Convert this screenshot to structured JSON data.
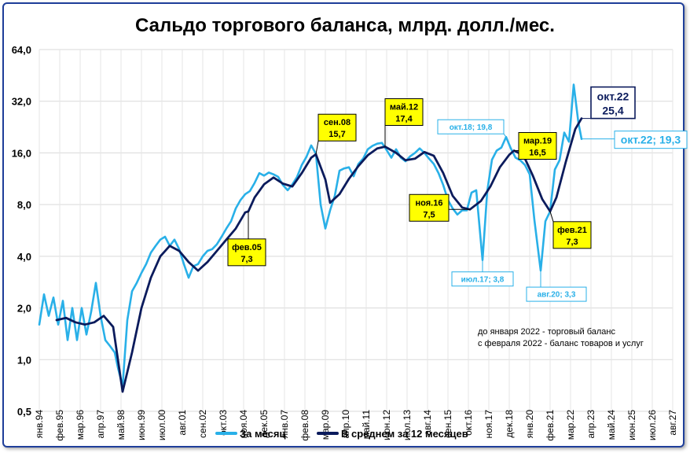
{
  "chart_data": {
    "type": "line",
    "title": "Сальдо торгового баланса, млрд. долл./мес.",
    "yscale": "log2",
    "ylim": [
      0.5,
      64.0
    ],
    "yticks": [
      "64,0",
      "32,0",
      "16,0",
      "8,0",
      "4,0",
      "2,0",
      "1,0",
      "0,5"
    ],
    "ytick_values": [
      64,
      32,
      16,
      8,
      4,
      2,
      1,
      0.5
    ],
    "xlim": [
      "1994-01",
      "2027-08"
    ],
    "xticks": [
      {
        "label": "янв.94",
        "date": "1994-01"
      },
      {
        "label": "фев.95",
        "date": "1995-02"
      },
      {
        "label": "мар.96",
        "date": "1996-03"
      },
      {
        "label": "апр.97",
        "date": "1997-04"
      },
      {
        "label": "май.98",
        "date": "1998-05"
      },
      {
        "label": "июн.99",
        "date": "1999-06"
      },
      {
        "label": "июл.00",
        "date": "2000-07"
      },
      {
        "label": "авг.01",
        "date": "2001-08"
      },
      {
        "label": "сен.02",
        "date": "2002-09"
      },
      {
        "label": "окт.03",
        "date": "2003-10"
      },
      {
        "label": "ноя.04",
        "date": "2004-11"
      },
      {
        "label": "дек.05",
        "date": "2005-12"
      },
      {
        "label": "янв.07",
        "date": "2007-01"
      },
      {
        "label": "фев.08",
        "date": "2008-02"
      },
      {
        "label": "мар.09",
        "date": "2009-03"
      },
      {
        "label": "апр.10",
        "date": "2010-04"
      },
      {
        "label": "май.11",
        "date": "2011-05"
      },
      {
        "label": "июн.12",
        "date": "2012-06"
      },
      {
        "label": "июл.13",
        "date": "2013-07"
      },
      {
        "label": "авг.14",
        "date": "2014-08"
      },
      {
        "label": "сен.15",
        "date": "2015-09"
      },
      {
        "label": "окт.16",
        "date": "2016-10"
      },
      {
        "label": "ноя.17",
        "date": "2017-11"
      },
      {
        "label": "дек.18",
        "date": "2018-12"
      },
      {
        "label": "янв.20",
        "date": "2020-01"
      },
      {
        "label": "фев.21",
        "date": "2021-02"
      },
      {
        "label": "мар.22",
        "date": "2022-03"
      },
      {
        "label": "апр.23",
        "date": "2023-04"
      },
      {
        "label": "май.24",
        "date": "2024-05"
      },
      {
        "label": "июн.25",
        "date": "2025-06"
      },
      {
        "label": "июл.26",
        "date": "2026-07"
      },
      {
        "label": "авг.27",
        "date": "2027-08"
      }
    ],
    "grid": true,
    "legend_position": "bottom",
    "series": [
      {
        "name": "За месяц",
        "color": "#29b0e8",
        "points": [
          [
            "1994-01",
            1.6
          ],
          [
            "1994-04",
            2.4
          ],
          [
            "1994-07",
            1.8
          ],
          [
            "1994-10",
            2.3
          ],
          [
            "1995-01",
            1.6
          ],
          [
            "1995-04",
            2.2
          ],
          [
            "1995-07",
            1.3
          ],
          [
            "1995-10",
            2.0
          ],
          [
            "1996-01",
            1.3
          ],
          [
            "1996-04",
            2.0
          ],
          [
            "1996-07",
            1.4
          ],
          [
            "1996-10",
            1.9
          ],
          [
            "1997-01",
            2.8
          ],
          [
            "1997-04",
            1.8
          ],
          [
            "1997-07",
            1.3
          ],
          [
            "1997-10",
            1.2
          ],
          [
            "1998-01",
            1.1
          ],
          [
            "1998-03",
            0.9
          ],
          [
            "1998-06",
            0.7
          ],
          [
            "1998-09",
            1.7
          ],
          [
            "1998-12",
            2.5
          ],
          [
            "1999-03",
            2.8
          ],
          [
            "1999-06",
            3.2
          ],
          [
            "1999-09",
            3.6
          ],
          [
            "1999-12",
            4.2
          ],
          [
            "2000-03",
            4.6
          ],
          [
            "2000-06",
            5.0
          ],
          [
            "2000-09",
            5.2
          ],
          [
            "2000-12",
            4.6
          ],
          [
            "2001-03",
            5.0
          ],
          [
            "2001-06",
            4.4
          ],
          [
            "2001-09",
            3.6
          ],
          [
            "2001-12",
            3.0
          ],
          [
            "2002-03",
            3.5
          ],
          [
            "2002-06",
            3.6
          ],
          [
            "2002-09",
            4.0
          ],
          [
            "2002-12",
            4.3
          ],
          [
            "2003-03",
            4.4
          ],
          [
            "2003-06",
            4.7
          ],
          [
            "2003-09",
            5.2
          ],
          [
            "2003-12",
            5.8
          ],
          [
            "2004-03",
            6.4
          ],
          [
            "2004-06",
            7.6
          ],
          [
            "2004-09",
            8.5
          ],
          [
            "2004-12",
            9.2
          ],
          [
            "2005-03",
            9.6
          ],
          [
            "2005-06",
            10.7
          ],
          [
            "2005-09",
            12.2
          ],
          [
            "2005-12",
            11.8
          ],
          [
            "2006-03",
            12.3
          ],
          [
            "2006-06",
            12.0
          ],
          [
            "2006-09",
            11.6
          ],
          [
            "2006-12",
            10.4
          ],
          [
            "2007-03",
            9.7
          ],
          [
            "2007-06",
            10.5
          ],
          [
            "2007-09",
            11.6
          ],
          [
            "2007-12",
            13.6
          ],
          [
            "2008-03",
            15.2
          ],
          [
            "2008-06",
            17.7
          ],
          [
            "2008-09",
            15.8
          ],
          [
            "2008-12",
            8.0
          ],
          [
            "2009-03",
            5.8
          ],
          [
            "2009-06",
            7.4
          ],
          [
            "2009-09",
            9.0
          ],
          [
            "2009-12",
            12.6
          ],
          [
            "2010-03",
            13.0
          ],
          [
            "2010-06",
            13.2
          ],
          [
            "2010-09",
            11.7
          ],
          [
            "2010-12",
            13.8
          ],
          [
            "2011-03",
            14.8
          ],
          [
            "2011-06",
            16.8
          ],
          [
            "2011-09",
            17.6
          ],
          [
            "2011-12",
            18.1
          ],
          [
            "2012-03",
            18.3
          ],
          [
            "2012-06",
            16.6
          ],
          [
            "2012-09",
            15.0
          ],
          [
            "2012-12",
            16.8
          ],
          [
            "2013-03",
            15.0
          ],
          [
            "2013-06",
            14.3
          ],
          [
            "2013-09",
            15.3
          ],
          [
            "2013-12",
            16.0
          ],
          [
            "2014-03",
            17.0
          ],
          [
            "2014-06",
            16.0
          ],
          [
            "2014-09",
            14.8
          ],
          [
            "2014-12",
            13.8
          ],
          [
            "2015-03",
            12.2
          ],
          [
            "2015-06",
            10.4
          ],
          [
            "2015-09",
            8.5
          ],
          [
            "2015-12",
            7.6
          ],
          [
            "2016-03",
            7.0
          ],
          [
            "2016-06",
            7.4
          ],
          [
            "2016-09",
            7.4
          ],
          [
            "2016-12",
            9.4
          ],
          [
            "2017-03",
            9.7
          ],
          [
            "2017-07",
            3.8
          ],
          [
            "2017-10",
            9.6
          ],
          [
            "2018-01",
            14.6
          ],
          [
            "2018-04",
            16.5
          ],
          [
            "2018-07",
            17.2
          ],
          [
            "2018-10",
            19.8
          ],
          [
            "2019-01",
            17.0
          ],
          [
            "2019-04",
            15.0
          ],
          [
            "2019-07",
            14.5
          ],
          [
            "2019-10",
            13.6
          ],
          [
            "2020-01",
            12.0
          ],
          [
            "2020-04",
            6.5
          ],
          [
            "2020-08",
            3.3
          ],
          [
            "2020-11",
            6.4
          ],
          [
            "2021-02",
            7.3
          ],
          [
            "2021-05",
            12.8
          ],
          [
            "2021-08",
            14.5
          ],
          [
            "2021-11",
            21.0
          ],
          [
            "2022-02",
            18.6
          ],
          [
            "2022-05",
            40.0
          ],
          [
            "2022-08",
            24.0
          ],
          [
            "2022-10",
            19.3
          ]
        ]
      },
      {
        "name": "В среднем за 12 месяцев",
        "color": "#0b1b5c",
        "points": [
          [
            "1994-12",
            1.7
          ],
          [
            "1995-06",
            1.75
          ],
          [
            "1995-12",
            1.65
          ],
          [
            "1996-06",
            1.6
          ],
          [
            "1996-12",
            1.65
          ],
          [
            "1997-06",
            1.8
          ],
          [
            "1997-12",
            1.55
          ],
          [
            "1998-06",
            0.65
          ],
          [
            "1998-12",
            1.1
          ],
          [
            "1999-06",
            2.0
          ],
          [
            "1999-12",
            3.0
          ],
          [
            "2000-06",
            4.0
          ],
          [
            "2000-12",
            4.6
          ],
          [
            "2001-06",
            4.3
          ],
          [
            "2001-12",
            3.7
          ],
          [
            "2002-06",
            3.3
          ],
          [
            "2002-12",
            3.7
          ],
          [
            "2003-06",
            4.3
          ],
          [
            "2003-12",
            5.0
          ],
          [
            "2004-06",
            5.8
          ],
          [
            "2004-12",
            7.2
          ],
          [
            "2005-02",
            7.3
          ],
          [
            "2005-06",
            8.8
          ],
          [
            "2005-12",
            10.5
          ],
          [
            "2006-06",
            11.5
          ],
          [
            "2006-12",
            10.6
          ],
          [
            "2007-06",
            10.2
          ],
          [
            "2007-12",
            12.2
          ],
          [
            "2008-06",
            15.0
          ],
          [
            "2008-09",
            15.7
          ],
          [
            "2009-03",
            11.2
          ],
          [
            "2009-06",
            8.2
          ],
          [
            "2009-12",
            9.2
          ],
          [
            "2010-06",
            11.3
          ],
          [
            "2010-12",
            13.4
          ],
          [
            "2011-06",
            15.5
          ],
          [
            "2011-12",
            17.0
          ],
          [
            "2012-05",
            17.4
          ],
          [
            "2012-12",
            16.0
          ],
          [
            "2013-06",
            14.5
          ],
          [
            "2013-12",
            14.8
          ],
          [
            "2014-06",
            16.2
          ],
          [
            "2014-12",
            15.4
          ],
          [
            "2015-06",
            12.2
          ],
          [
            "2015-12",
            9.0
          ],
          [
            "2016-06",
            7.7
          ],
          [
            "2016-11",
            7.5
          ],
          [
            "2017-06",
            8.4
          ],
          [
            "2017-12",
            10.2
          ],
          [
            "2018-06",
            13.2
          ],
          [
            "2018-12",
            15.6
          ],
          [
            "2019-03",
            16.5
          ],
          [
            "2019-09",
            15.5
          ],
          [
            "2020-03",
            11.8
          ],
          [
            "2020-09",
            8.6
          ],
          [
            "2021-02",
            7.3
          ],
          [
            "2021-06",
            8.8
          ],
          [
            "2021-12",
            14.2
          ],
          [
            "2022-06",
            22.0
          ],
          [
            "2022-10",
            25.4
          ]
        ]
      }
    ],
    "annotations": [
      {
        "text": "фев.05",
        "value_text": "7,3",
        "date": "2005-02",
        "value": 7.3,
        "style": "yellow"
      },
      {
        "text": "сен.08",
        "value_text": "15,7",
        "date": "2008-09",
        "value": 15.7,
        "style": "yellow"
      },
      {
        "text": "май.12",
        "value_text": "17,4",
        "date": "2012-05",
        "value": 17.4,
        "style": "yellow"
      },
      {
        "text": "ноя.16",
        "value_text": "7,5",
        "date": "2016-11",
        "value": 7.5,
        "style": "yellow"
      },
      {
        "text": "мар.19",
        "value_text": "16,5",
        "date": "2019-03",
        "value": 16.5,
        "style": "yellow"
      },
      {
        "text": "фев.21",
        "value_text": "7,3",
        "date": "2021-02",
        "value": 7.3,
        "style": "yellow"
      },
      {
        "text": "окт.22",
        "value_text": "25,4",
        "date": "2022-10",
        "value": 25.4,
        "style": "navy-box"
      },
      {
        "text": "окт.22; 19,3",
        "date": "2022-10",
        "value": 19.3,
        "style": "cyan-box"
      },
      {
        "text": "окт.18; 19,8",
        "date": "2018-10",
        "value": 19.8,
        "style": "cyan-small"
      },
      {
        "text": "июл.17; 3,8",
        "date": "2017-07",
        "value": 3.8,
        "style": "cyan-small"
      },
      {
        "text": "авг.20; 3,3",
        "date": "2020-08",
        "value": 3.3,
        "style": "cyan-small"
      }
    ],
    "notes": [
      "до января 2022 - торговый баланс",
      "с февраля 2022 - баланс товаров и услуг"
    ]
  }
}
